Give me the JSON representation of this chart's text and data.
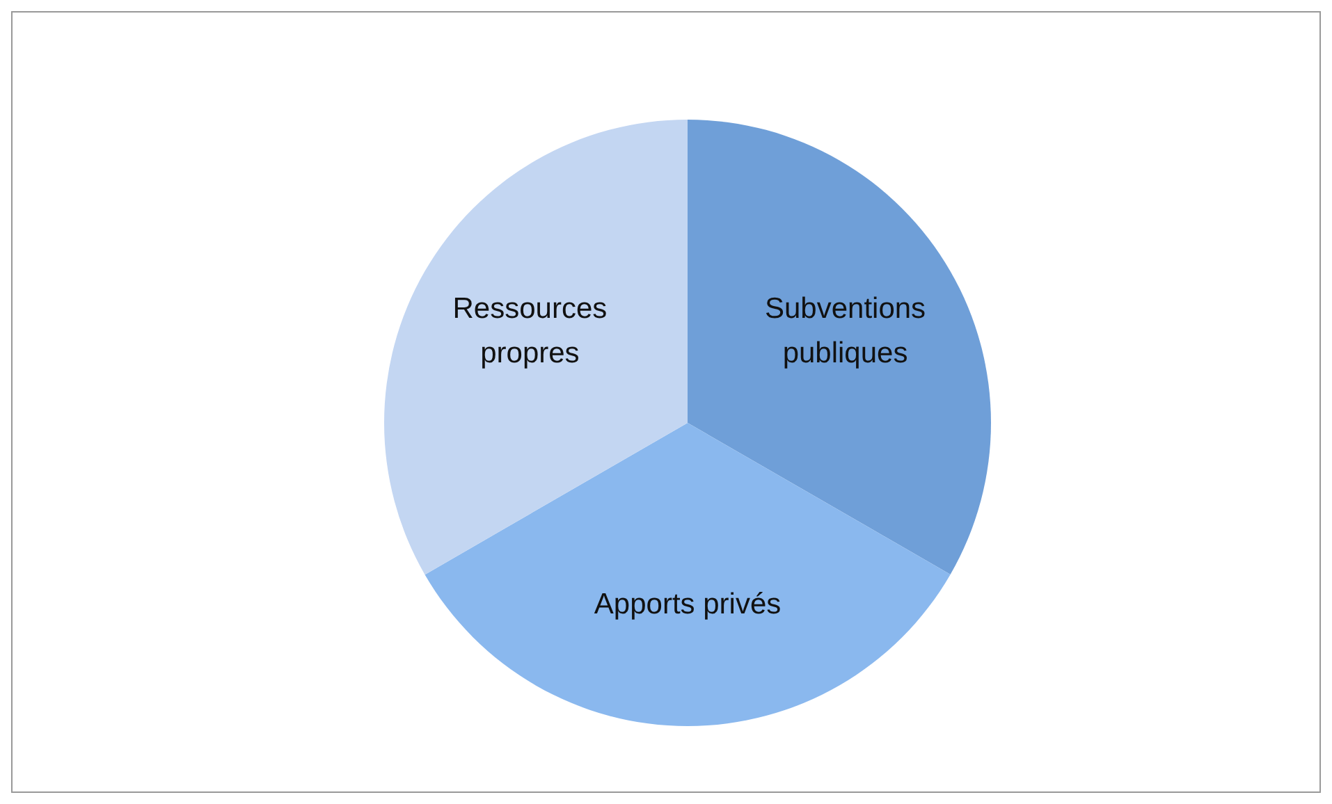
{
  "chart_data": {
    "type": "pie",
    "categories": [
      "Subventions publiques",
      "Apports privés",
      "Ressources propres"
    ],
    "values": [
      33.33,
      33.33,
      33.34
    ],
    "colors": [
      "#6f9fd8",
      "#8ab8ee",
      "#c3d6f2"
    ]
  }
}
